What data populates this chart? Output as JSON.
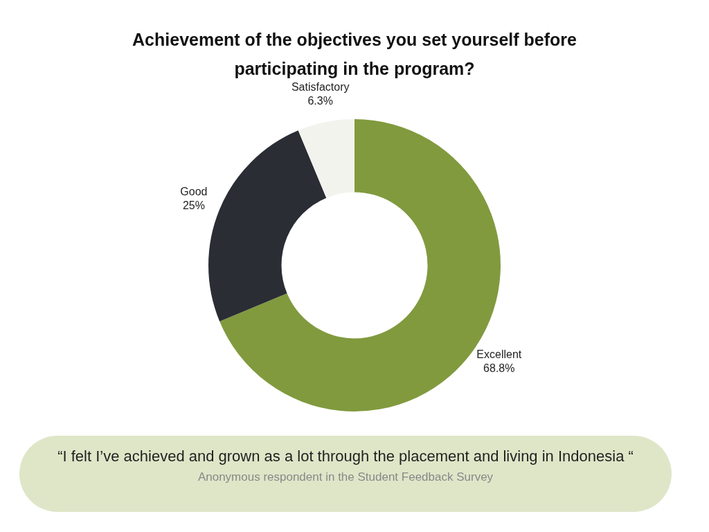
{
  "chart_data": {
    "type": "donut",
    "title": "Achievement of the objectives you set yourself before participating in the program?",
    "categories": [
      "Excellent",
      "Good",
      "Satisfactory"
    ],
    "values": [
      68.8,
      25,
      6.3
    ],
    "value_labels": [
      "68.8%",
      "25%",
      "6.3%"
    ],
    "colors": [
      "#819a3e",
      "#2a2d34",
      "#f3f3ee"
    ],
    "legend": false,
    "annotations": [
      "“I felt I’ve achieved and grown as a lot through the placement and living in Indonesia “",
      "Anonymous respondent in the Student Feedback Survey"
    ]
  }
}
